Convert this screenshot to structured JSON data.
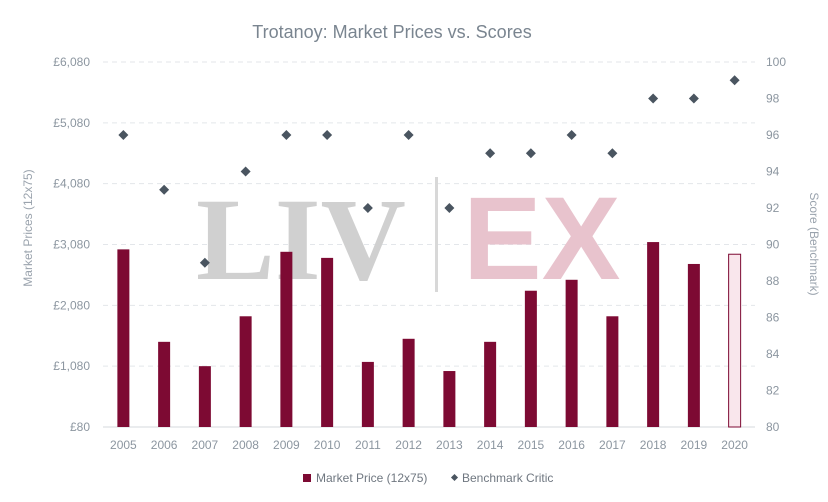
{
  "chart_data": {
    "type": "bar",
    "title": "Trotanoy: Market Prices vs. Scores",
    "y_left_label": "Market Prices (12x75)",
    "y_right_label": "Score (Benchmark)",
    "y_left_ticks": [
      "£80",
      "£1,080",
      "£2,080",
      "£3,080",
      "£4,080",
      "£5,080",
      "£6,080"
    ],
    "y_right_ticks": [
      "80",
      "82",
      "84",
      "86",
      "88",
      "90",
      "92",
      "94",
      "96",
      "98",
      "100"
    ],
    "ylim_left": [
      80,
      6080
    ],
    "ylim_right": [
      80,
      100
    ],
    "grid": true,
    "legend_position": "bottom",
    "categories": [
      "2005",
      "2006",
      "2007",
      "2008",
      "2009",
      "2010",
      "2011",
      "2012",
      "2013",
      "2014",
      "2015",
      "2016",
      "2017",
      "2018",
      "2019",
      "2020"
    ],
    "series": [
      {
        "name": "Market Price (12x75)",
        "type": "bar",
        "axis": "left",
        "color": "#7d0a33",
        "values": [
          3000,
          1480,
          1080,
          1900,
          2960,
          2860,
          1150,
          1530,
          1000,
          1480,
          2320,
          2500,
          1900,
          3120,
          2760,
          2920
        ],
        "highlight_last": true
      },
      {
        "name": "Benchmark Critic",
        "type": "scatter",
        "axis": "right",
        "color": "#4a5560",
        "values": [
          96,
          93,
          89,
          94,
          96,
          96,
          92,
          96,
          92,
          95,
          95,
          96,
          95,
          98,
          98,
          99
        ]
      }
    ]
  },
  "watermark": {
    "left": "LIV",
    "right": "EX",
    "left_color": "#d0d0d0",
    "right_color": "#e8c3cd"
  }
}
